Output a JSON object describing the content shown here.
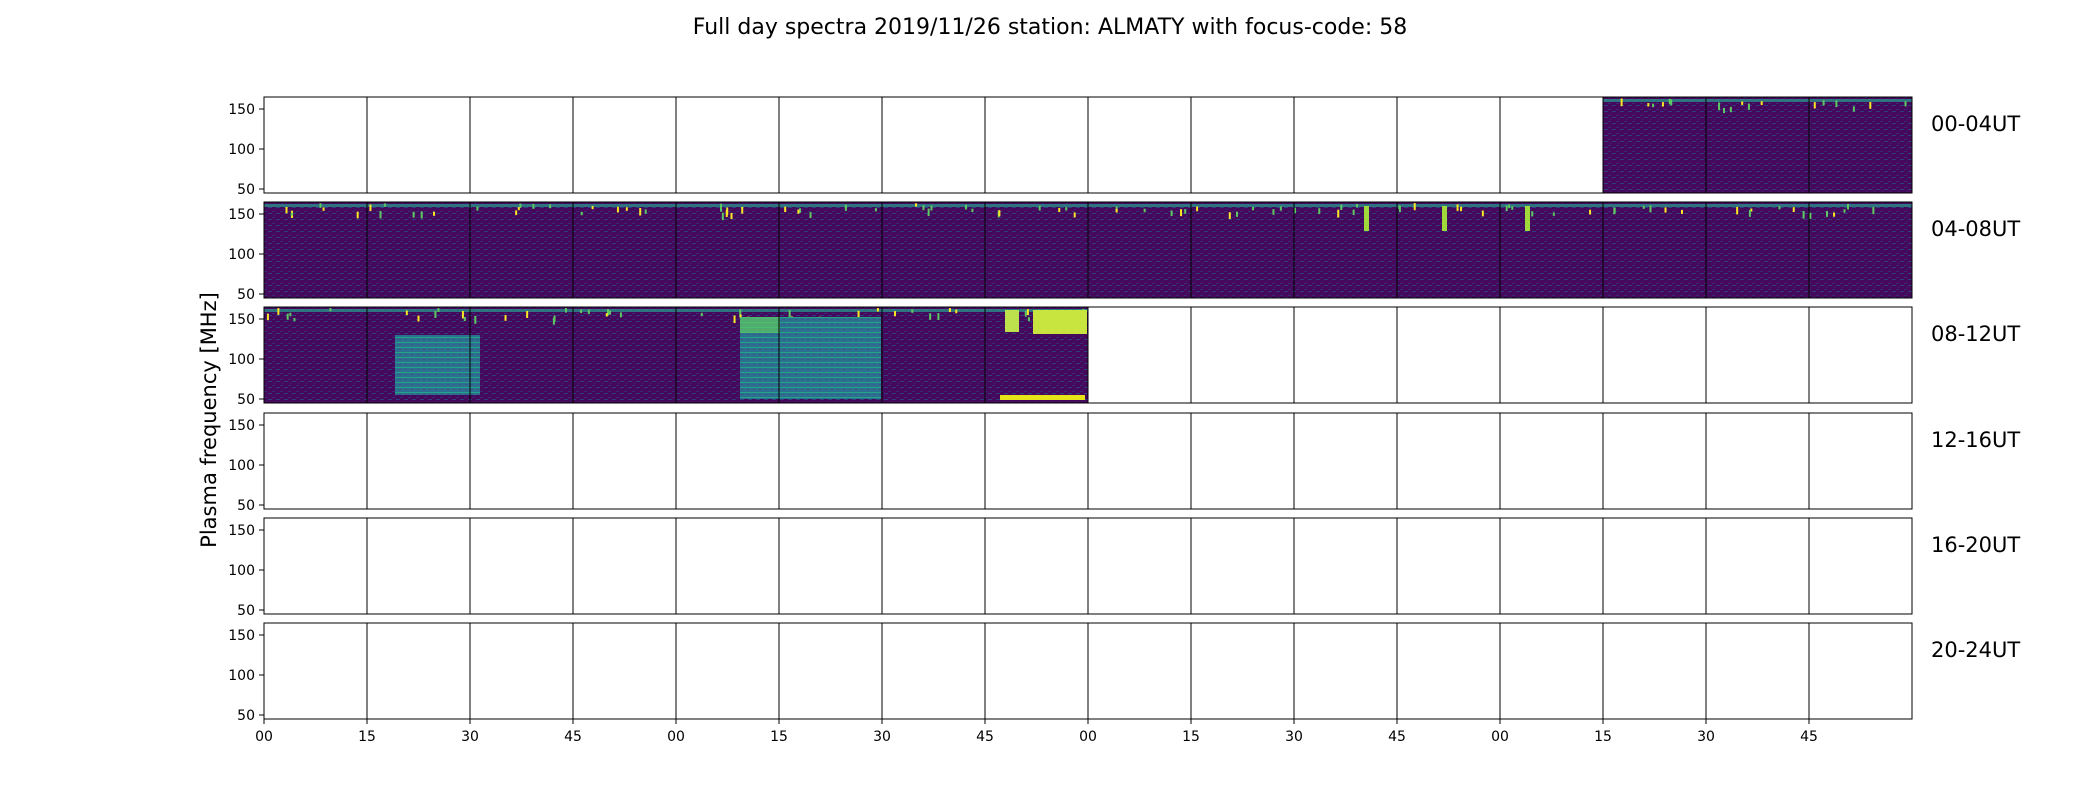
{
  "chart_data": {
    "type": "heatmap",
    "title": "Full day spectra 2019/11/26 station: ALMATY with focus-code: 58",
    "ylabel": "Plasma frequency [MHz]",
    "xlabel": "",
    "y_ticks": [
      "150",
      "100",
      "50"
    ],
    "x_ticks": [
      "00",
      "15",
      "30",
      "45",
      "00",
      "15",
      "30",
      "45",
      "00",
      "15",
      "30",
      "45",
      "00",
      "15",
      "30",
      "45"
    ],
    "ylim": [
      45,
      165
    ],
    "rows": [
      {
        "label": "00-04UT",
        "first_filled_panel": 13,
        "last_filled_panel": 15
      },
      {
        "label": "04-08UT",
        "first_filled_panel": 0,
        "last_filled_panel": 15
      },
      {
        "label": "08-12UT",
        "first_filled_panel": 0,
        "last_filled_panel": 7
      },
      {
        "label": "12-16UT",
        "first_filled_panel": null,
        "last_filled_panel": null
      },
      {
        "label": "16-20UT",
        "first_filled_panel": null,
        "last_filled_panel": null
      },
      {
        "label": "20-24UT",
        "first_filled_panel": null,
        "last_filled_panel": null
      }
    ],
    "panels_per_row": 16,
    "minutes_per_panel": 15,
    "colormap": [
      "#440154",
      "#3b528b",
      "#21918c",
      "#5ec962",
      "#fde725"
    ]
  }
}
